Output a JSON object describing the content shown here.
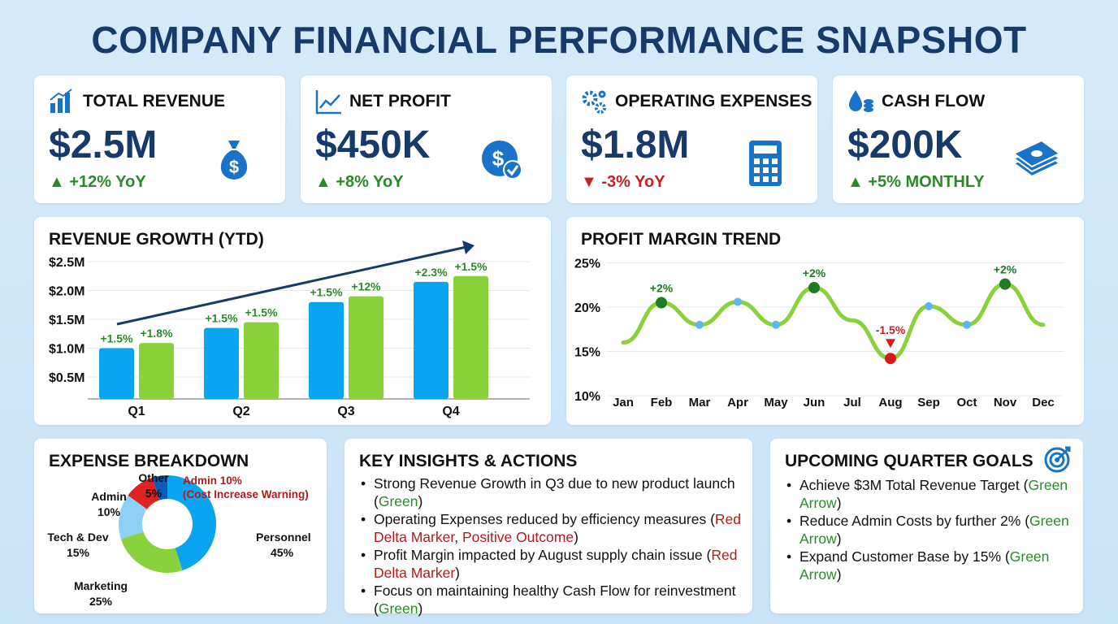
{
  "title": "COMPANY FINANCIAL PERFORMANCE SNAPSHOT",
  "kpis": [
    {
      "label": "TOTAL REVENUE",
      "value": "$2.5M",
      "delta": "+12% YoY",
      "direction": "up",
      "icon": "bar-chart-icon",
      "big_icon": "money-bag-icon"
    },
    {
      "label": "NET PROFIT",
      "value": "$450K",
      "delta": "+8% YoY",
      "direction": "up",
      "icon": "line-chart-icon",
      "big_icon": "dollar-check-icon"
    },
    {
      "label": "OPERATING EXPENSES",
      "value": "$1.8M",
      "delta": "-3% YoY",
      "direction": "down",
      "icon": "gears-icon",
      "big_icon": "calculator-icon"
    },
    {
      "label": "CASH FLOW",
      "value": "$200K",
      "delta": "+5% MONTHLY",
      "direction": "up",
      "icon": "water-drop-coins-icon",
      "big_icon": "cash-stack-icon"
    }
  ],
  "colors": {
    "blue": "#0ba4ee",
    "green": "#8ad23c",
    "navy": "#163b6b",
    "up": "#2a8a2a",
    "down": "#c62020"
  },
  "revenue": {
    "title": "REVENUE GROWTH (YTD)"
  },
  "profit": {
    "title": "PROFIT MARGIN TREND"
  },
  "chart_data": [
    {
      "type": "bar",
      "title": "REVENUE GROWTH (YTD)",
      "categories": [
        "Q1",
        "Q2",
        "Q3",
        "Q4"
      ],
      "yticks": [
        "$0.5M",
        "$1.0M",
        "$1.5M",
        "$2.0M",
        "$2.5M"
      ],
      "ylim": [
        0.12,
        2.5
      ],
      "grid": true,
      "series": [
        {
          "values": [
            1.0,
            1.35,
            1.8,
            2.15
          ],
          "labels": [
            "+1.5%",
            "+1.5%",
            "+1.5%",
            "+2.3%"
          ],
          "color": "#0ba4ee"
        },
        {
          "values": [
            1.09,
            1.45,
            1.9,
            2.25
          ],
          "labels": [
            "+1.8%",
            "+1.5%",
            "+12%",
            "+1.5%"
          ],
          "color": "#8ad23c"
        }
      ],
      "annotation": "upward trend arrow"
    },
    {
      "type": "line",
      "title": "PROFIT MARGIN TREND",
      "x": [
        "Jan",
        "Feb",
        "Mar",
        "Apr",
        "May",
        "Jun",
        "Jul",
        "Aug",
        "Sep",
        "Oct",
        "Nov",
        "Dec"
      ],
      "yticks": [
        "10%",
        "15%",
        "20%",
        "25%"
      ],
      "ylim": [
        10,
        25
      ],
      "grid": true,
      "values": [
        16,
        20.5,
        18,
        20.6,
        18,
        22.2,
        18.5,
        14.2,
        20.1,
        18,
        22.6,
        18
      ],
      "markers": [
        null,
        "green",
        "blue",
        "blue",
        "blue",
        "green",
        null,
        "red",
        "blue",
        "blue",
        "green",
        null
      ],
      "point_labels": {
        "Feb": "+2%",
        "Jun": "+2%",
        "Aug": "-1.5%",
        "Nov": "+2%"
      }
    },
    {
      "type": "pie",
      "title": "EXPENSE BREAKDOWN",
      "donut": true,
      "slices": [
        {
          "label": "Personnel",
          "value": 45,
          "color": "#0ba4ee"
        },
        {
          "label": "Marketing",
          "value": 25,
          "color": "#8ad23c"
        },
        {
          "label": "Tech & Dev",
          "value": 15,
          "color": "#8fd0f5"
        },
        {
          "label": "Admin",
          "value": 10,
          "color": "#dd2222"
        },
        {
          "label": "Other",
          "value": 5,
          "color": "#0a5cb8"
        }
      ],
      "annotation": [
        "Admin 10%",
        "(Cost Increase Warning)"
      ]
    }
  ],
  "insights": {
    "title": "KEY INSIGHTS & ACTIONS",
    "items": [
      [
        {
          "t": "Strong Revenue Growth in Q3 due to new product launch ("
        },
        {
          "t": "Green",
          "c": "g"
        },
        {
          "t": ")"
        }
      ],
      [
        {
          "t": "Operating Expenses reduced by efficiency measures ("
        },
        {
          "t": "Red Delta Marker",
          "c": "r"
        },
        {
          "t": ", "
        },
        {
          "t": "Positive Outcome",
          "c": "r"
        },
        {
          "t": ")"
        }
      ],
      [
        {
          "t": "Profit Margin impacted by August supply chain issue ("
        },
        {
          "t": "Red Delta Marker",
          "c": "r"
        },
        {
          "t": ")"
        }
      ],
      [
        {
          "t": "Focus on maintaining healthy Cash Flow for reinvestment ("
        },
        {
          "t": "Green",
          "c": "g"
        },
        {
          "t": ")"
        }
      ]
    ]
  },
  "goals": {
    "title": "UPCOMING QUARTER GOALS",
    "icon": "target-icon",
    "items": [
      [
        {
          "t": "Achieve $3M Total Revenue Target ("
        },
        {
          "t": "Green Arrow",
          "c": "g"
        },
        {
          "t": ")"
        }
      ],
      [
        {
          "t": "Reduce Admin Costs by further 2% ("
        },
        {
          "t": "Green Arrow",
          "c": "g"
        },
        {
          "t": ")"
        }
      ],
      [
        {
          "t": "Expand Customer Base by 15% ("
        },
        {
          "t": "Green Arrow",
          "c": "g"
        },
        {
          "t": ")"
        }
      ]
    ]
  }
}
